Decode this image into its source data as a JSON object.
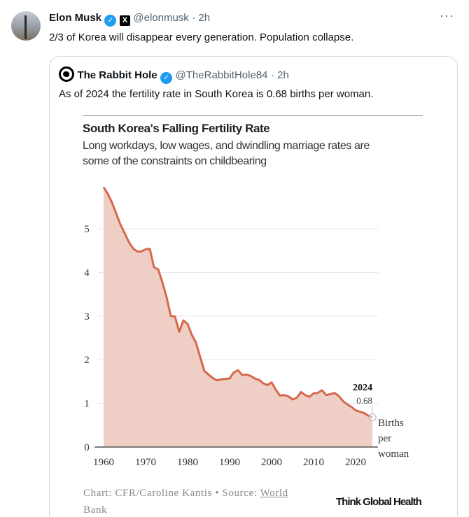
{
  "tweet": {
    "author_name": "Elon Musk",
    "handle": "@elonmusk",
    "time": "· 2h",
    "text": "2/3 of Korea will disappear every generation. Population collapse.",
    "more_icon": "more-icon"
  },
  "quote": {
    "author_name": "The Rabbit Hole",
    "handle": "@TheRabbitHole84",
    "time": "· 2h",
    "text": "As of 2024 the fertility rate in South Korea is 0.68 births per woman."
  },
  "colors": {
    "line": "#d5694d",
    "fill": "#efcfc5",
    "verified": "#1d9bf0"
  },
  "chart_data": {
    "type": "area",
    "title": "South Korea's Falling Fertility Rate",
    "subtitle_lines": [
      "Long workdays, low wages, and dwindling marriage rates are",
      "some of the constraints on childbearing"
    ],
    "xlabel": "",
    "ylabel": "",
    "xlim": [
      1960,
      2024
    ],
    "ylim": [
      0,
      6
    ],
    "grid": true,
    "x_ticks": [
      "1960",
      "1970",
      "1980",
      "1990",
      "2000",
      "2010",
      "2020"
    ],
    "y_ticks": [
      "0",
      "1",
      "2",
      "3",
      "4",
      "5"
    ],
    "x": [
      1960,
      1961,
      1962,
      1963,
      1964,
      1965,
      1966,
      1967,
      1968,
      1969,
      1970,
      1971,
      1972,
      1973,
      1974,
      1975,
      1976,
      1977,
      1978,
      1979,
      1980,
      1981,
      1982,
      1983,
      1984,
      1985,
      1986,
      1987,
      1988,
      1989,
      1990,
      1991,
      1992,
      1993,
      1994,
      1995,
      1996,
      1997,
      1998,
      1999,
      2000,
      2001,
      2002,
      2003,
      2004,
      2005,
      2006,
      2007,
      2008,
      2009,
      2010,
      2011,
      2012,
      2013,
      2014,
      2015,
      2016,
      2017,
      2018,
      2019,
      2020,
      2021,
      2022,
      2023,
      2024
    ],
    "values": [
      5.95,
      5.8,
      5.6,
      5.35,
      5.1,
      4.9,
      4.7,
      4.55,
      4.48,
      4.48,
      4.53,
      4.54,
      4.12,
      4.07,
      3.77,
      3.43,
      3.0,
      2.99,
      2.64,
      2.9,
      2.82,
      2.57,
      2.39,
      2.06,
      1.74,
      1.66,
      1.58,
      1.53,
      1.55,
      1.56,
      1.57,
      1.71,
      1.76,
      1.65,
      1.66,
      1.63,
      1.57,
      1.54,
      1.46,
      1.42,
      1.48,
      1.31,
      1.18,
      1.19,
      1.16,
      1.09,
      1.13,
      1.26,
      1.19,
      1.15,
      1.23,
      1.24,
      1.3,
      1.19,
      1.21,
      1.24,
      1.17,
      1.05,
      0.98,
      0.92,
      0.84,
      0.81,
      0.78,
      0.72,
      0.68
    ],
    "annotation": {
      "year": "2024",
      "value": "0.68"
    },
    "unit_label_lines": [
      "Births",
      "per",
      "woman"
    ],
    "credit": "Chart: CFR/Caroline Kantis • Source: ",
    "source_link_line1": "World",
    "source_link_line2": "Bank",
    "brand": "Think Global Health"
  }
}
